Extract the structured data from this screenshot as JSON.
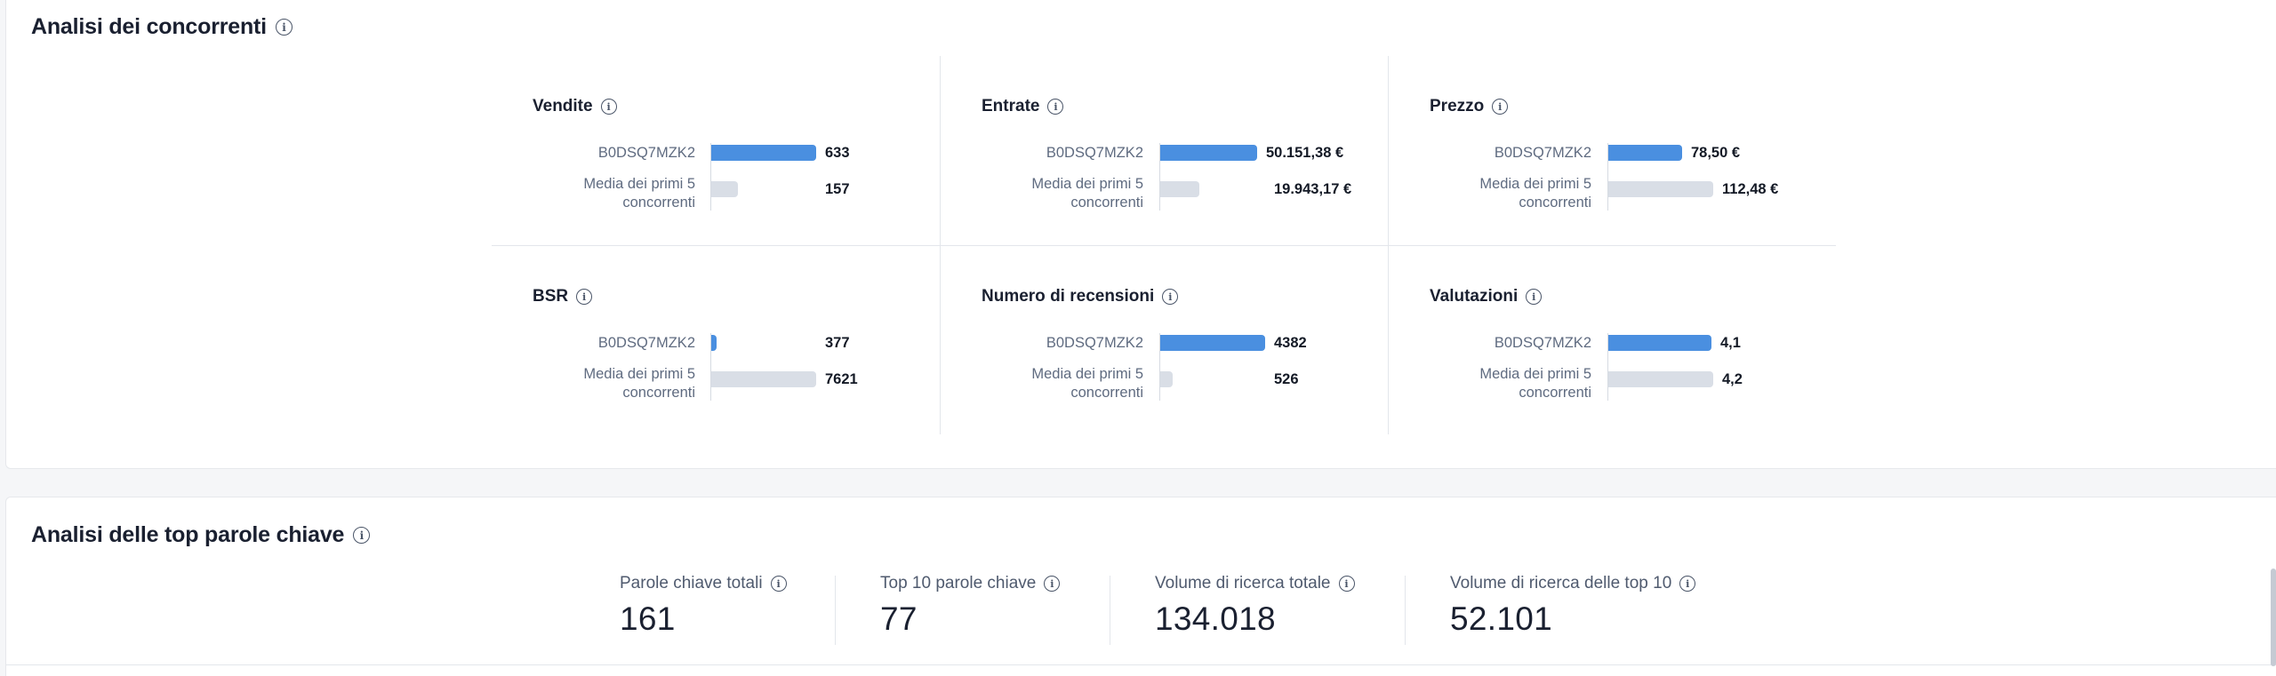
{
  "competitors": {
    "title": "Analisi dei concorrenti",
    "metrics": [
      {
        "name": "Vendite",
        "product_label": "B0DSQ7MZK2",
        "avg_label": "Media dei primi 5 concorrenti",
        "product_value": "633",
        "avg_value": "157",
        "product_fraction": 1.0,
        "avg_fraction": 0.25
      },
      {
        "name": "Entrate",
        "product_label": "B0DSQ7MZK2",
        "avg_label": "Media dei primi 5 concorrenti",
        "product_value": "50.151,38 €",
        "avg_value": "19.943,17 €",
        "product_fraction": 0.92,
        "avg_fraction": 0.37
      },
      {
        "name": "Prezzo",
        "product_label": "B0DSQ7MZK2",
        "avg_label": "Media dei primi 5 concorrenti",
        "product_value": "78,50 €",
        "avg_value": "112,48 €",
        "product_fraction": 0.7,
        "avg_fraction": 1.0
      },
      {
        "name": "BSR",
        "product_label": "B0DSQ7MZK2",
        "avg_label": "Media dei primi 5 concorrenti",
        "product_value": "377",
        "avg_value": "7621",
        "product_fraction": 0.05,
        "avg_fraction": 1.0
      },
      {
        "name": "Numero di recensioni",
        "product_label": "B0DSQ7MZK2",
        "avg_label": "Media dei primi 5 concorrenti",
        "product_value": "4382",
        "avg_value": "526",
        "product_fraction": 1.0,
        "avg_fraction": 0.12
      },
      {
        "name": "Valutazioni",
        "product_label": "B0DSQ7MZK2",
        "avg_label": "Media dei primi 5 concorrenti",
        "product_value": "4,1",
        "avg_value": "4,2",
        "product_fraction": 0.98,
        "avg_fraction": 1.0
      }
    ]
  },
  "keywords": {
    "title": "Analisi delle top parole chiave",
    "kpis": [
      {
        "label": "Parole chiave totali",
        "value": "161"
      },
      {
        "label": "Top 10 parole chiave",
        "value": "77"
      },
      {
        "label": "Volume di ricerca totale",
        "value": "134.018"
      },
      {
        "label": "Volume di ricerca delle top 10",
        "value": "52.101"
      }
    ]
  },
  "icons": {
    "info": "info-icon"
  },
  "colors": {
    "product_bar": "#4a8fe0",
    "avg_bar": "#d9dee6"
  }
}
